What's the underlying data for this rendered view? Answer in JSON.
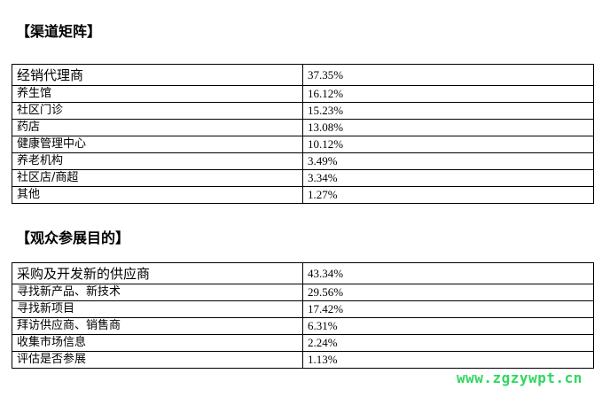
{
  "section1": {
    "title": "【渠道矩阵】",
    "rows": [
      {
        "label": "经销代理商",
        "value": "37.35%"
      },
      {
        "label": "养生馆",
        "value": "16.12%"
      },
      {
        "label": "社区门诊",
        "value": "15.23%"
      },
      {
        "label": "药店",
        "value": "13.08%"
      },
      {
        "label": "健康管理中心",
        "value": "10.12%"
      },
      {
        "label": "养老机构",
        "value": "3.49%"
      },
      {
        "label": "社区店/商超",
        "value": "3.34%"
      },
      {
        "label": "其他",
        "value": "1.27%"
      }
    ]
  },
  "section2": {
    "title": "【观众参展目的】",
    "rows": [
      {
        "label": "采购及开发新的供应商",
        "value": "43.34%"
      },
      {
        "label": "寻找新产品、新技术",
        "value": "29.56%"
      },
      {
        "label": "寻找新项目",
        "value": "17.42%"
      },
      {
        "label": "拜访供应商、销售商",
        "value": "6.31%"
      },
      {
        "label": "收集市场信息",
        "value": "2.24%"
      },
      {
        "label": "评估是否参展",
        "value": "1.13%"
      }
    ]
  },
  "watermark": "www.zgzywpt.cn"
}
